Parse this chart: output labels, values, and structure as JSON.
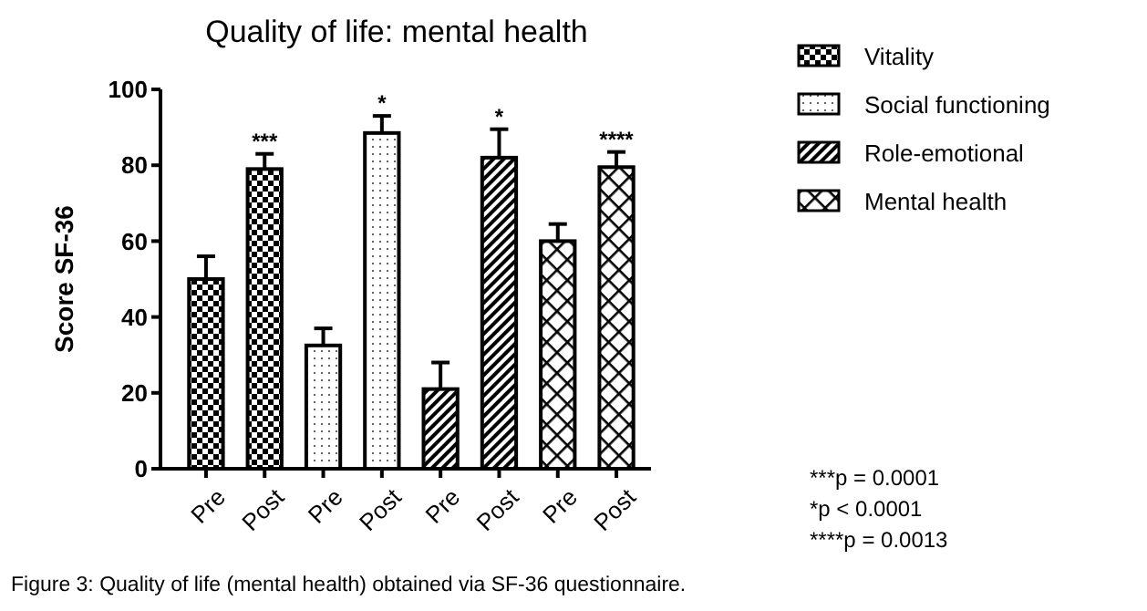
{
  "chart_data": {
    "type": "bar",
    "title": "Quality of life: mental health",
    "ylabel": "Score SF-36",
    "categories": [
      "Pre",
      "Post",
      "Pre",
      "Post",
      "Pre",
      "Post",
      "Pre",
      "Post"
    ],
    "ylim": [
      0,
      100
    ],
    "yticks": [
      0,
      20,
      40,
      60,
      80,
      100
    ],
    "grid": false,
    "legend": "right",
    "series": [
      {
        "name": "Vitality",
        "color": "#000000",
        "values": [
          50,
          79,
          null,
          null,
          null,
          null,
          null,
          null
        ],
        "errors": [
          6,
          4,
          null,
          null,
          null,
          null,
          null,
          null
        ],
        "value_labels": [
          null,
          "***",
          null,
          null,
          null,
          null,
          null,
          null
        ]
      },
      {
        "name": "Social functioning",
        "color": "#000000",
        "values": [
          null,
          null,
          32.5,
          88.5,
          null,
          null,
          null,
          null
        ],
        "errors": [
          null,
          null,
          4.5,
          4.5,
          null,
          null,
          null,
          null
        ],
        "value_labels": [
          null,
          null,
          null,
          "*",
          null,
          null,
          null,
          null
        ]
      },
      {
        "name": "Role-emotional",
        "color": "#000000",
        "values": [
          null,
          null,
          null,
          null,
          21,
          82,
          null,
          null
        ],
        "errors": [
          null,
          null,
          null,
          null,
          7,
          7.5,
          null,
          null
        ],
        "value_labels": [
          null,
          null,
          null,
          null,
          null,
          "*",
          null,
          null
        ]
      },
      {
        "name": "Mental health",
        "color": "#000000",
        "values": [
          null,
          null,
          null,
          null,
          null,
          null,
          60,
          79.5
        ],
        "errors": [
          null,
          null,
          null,
          null,
          null,
          null,
          4.5,
          4
        ],
        "value_labels": [
          null,
          null,
          null,
          null,
          null,
          null,
          null,
          "****"
        ]
      }
    ],
    "annotations": [
      "***p = 0.0001",
      "*p < 0.0001",
      "****p = 0.0013",
      "Figure 3: Quality of life (mental health) obtained via SF-36 questionnaire."
    ]
  }
}
